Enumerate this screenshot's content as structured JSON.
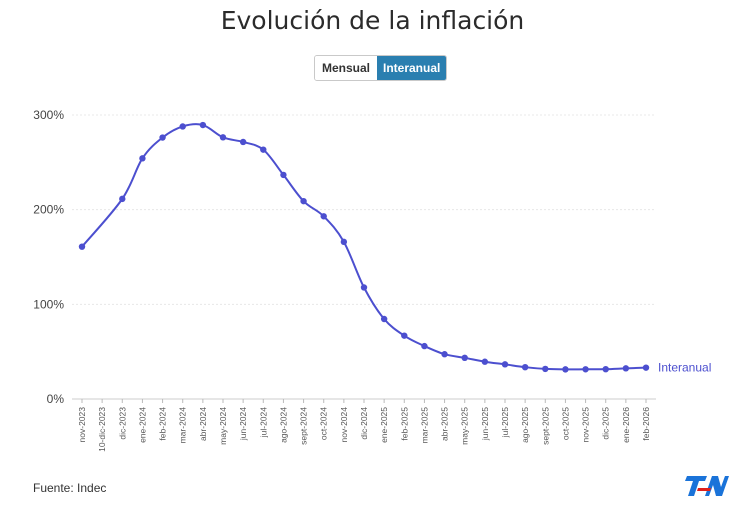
{
  "header": {
    "title": "Evolución de la inflación",
    "toggle": {
      "option_a": "Mensual",
      "option_b": "Interanual",
      "selected": "Interanual"
    }
  },
  "footer": {
    "source": "Fuente: Indec",
    "logo_text": "TN"
  },
  "colors": {
    "series": "#4c4fcf",
    "toggle_active": "#2a7fb0",
    "logo_blue": "#1a73d9",
    "logo_red": "#e0201b"
  },
  "chart_data": {
    "type": "line",
    "title": "Evolución de la inflación",
    "xlabel": "",
    "ylabel": "",
    "ylim": [
      0,
      300
    ],
    "yticks": [
      0,
      100,
      200,
      300
    ],
    "ytick_labels": [
      "0%",
      "100%",
      "200%",
      "300%"
    ],
    "grid": true,
    "categories": [
      "nov-2023",
      "10-dic-2023",
      "dic-2023",
      "ene-2024",
      "feb-2024",
      "mar-2024",
      "abr-2024",
      "may-2024",
      "jun-2024",
      "jul-2024",
      "ago-2024",
      "sept-2024",
      "oct-2024",
      "nov-2024",
      "dic-2024",
      "ene-2025",
      "feb-2025",
      "mar-2025",
      "abr-2025",
      "may-2025",
      "jun-2025",
      "jul-2025",
      "ago-2025",
      "sept-2025",
      "oct-2025",
      "nov-2025",
      "dic-2025",
      "ene-2026",
      "feb-2026"
    ],
    "series": [
      {
        "name": "Interanual",
        "values": [
          160.9,
          null,
          211.4,
          254.2,
          276.2,
          287.9,
          289.4,
          276.4,
          271.5,
          263.4,
          236.7,
          209,
          193,
          166,
          117.8,
          84.5,
          66.9,
          55.9,
          47.3,
          43.5,
          39.4,
          36.6,
          33.6,
          31.8,
          31.3,
          31.4,
          31.5,
          32.4,
          33.1
        ]
      }
    ]
  }
}
